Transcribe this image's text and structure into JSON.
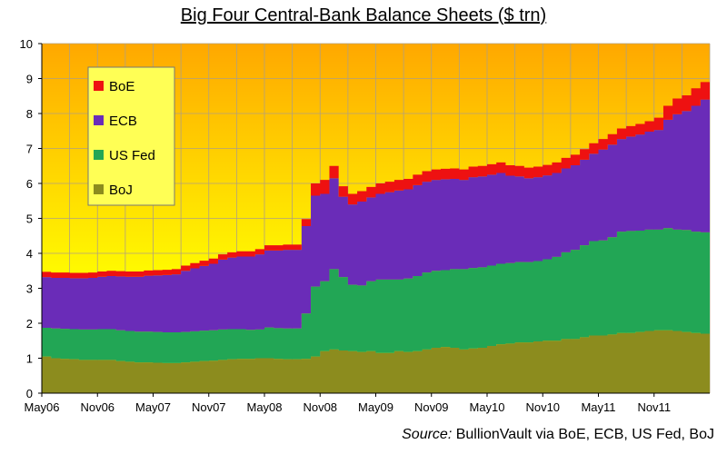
{
  "chart_data": {
    "type": "area",
    "stacked": true,
    "title": "Big Four Central-Bank Balance Sheets ($ trn)",
    "xlabel": "",
    "ylabel": "",
    "ylim": [
      0,
      10
    ],
    "yticks": [
      0,
      1,
      2,
      3,
      4,
      5,
      6,
      7,
      8,
      9,
      10
    ],
    "x_tick_labels": [
      "May06",
      "Nov06",
      "May07",
      "Nov07",
      "May08",
      "Nov08",
      "May09",
      "Nov09",
      "May10",
      "Nov10",
      "May11",
      "Nov11"
    ],
    "x_start": "May06",
    "x_end": "Apr12",
    "grid": true,
    "legend_position": "top-left",
    "background": "gradient yellow to orange",
    "months": [
      "May06",
      "Jun06",
      "Jul06",
      "Aug06",
      "Sep06",
      "Oct06",
      "Nov06",
      "Dec06",
      "Jan07",
      "Feb07",
      "Mar07",
      "Apr07",
      "May07",
      "Jun07",
      "Jul07",
      "Aug07",
      "Sep07",
      "Oct07",
      "Nov07",
      "Dec07",
      "Jan08",
      "Feb08",
      "Mar08",
      "Apr08",
      "May08",
      "Jun08",
      "Jul08",
      "Aug08",
      "Sep08",
      "Oct08",
      "Nov08",
      "Dec08",
      "Jan09",
      "Feb09",
      "Mar09",
      "Apr09",
      "May09",
      "Jun09",
      "Jul09",
      "Aug09",
      "Sep09",
      "Oct09",
      "Nov09",
      "Dec09",
      "Jan10",
      "Feb10",
      "Mar10",
      "Apr10",
      "May10",
      "Jun10",
      "Jul10",
      "Aug10",
      "Sep10",
      "Oct10",
      "Nov10",
      "Dec10",
      "Jan11",
      "Feb11",
      "Mar11",
      "Apr11",
      "May11",
      "Jun11",
      "Jul11",
      "Aug11",
      "Sep11",
      "Oct11",
      "Nov11",
      "Dec11",
      "Jan12",
      "Feb12",
      "Mar12",
      "Apr12"
    ],
    "series": [
      {
        "name": "BoJ",
        "color": "#8c8c1e",
        "values": [
          1.05,
          1.0,
          0.98,
          0.97,
          0.95,
          0.95,
          0.95,
          0.95,
          0.92,
          0.9,
          0.88,
          0.88,
          0.87,
          0.86,
          0.86,
          0.88,
          0.9,
          0.92,
          0.93,
          0.95,
          0.97,
          0.98,
          0.98,
          1.0,
          1.0,
          0.98,
          0.97,
          0.97,
          0.98,
          1.05,
          1.2,
          1.25,
          1.22,
          1.2,
          1.18,
          1.2,
          1.15,
          1.15,
          1.2,
          1.18,
          1.2,
          1.25,
          1.3,
          1.32,
          1.3,
          1.25,
          1.28,
          1.3,
          1.35,
          1.4,
          1.42,
          1.45,
          1.45,
          1.48,
          1.5,
          1.5,
          1.55,
          1.55,
          1.6,
          1.65,
          1.65,
          1.68,
          1.72,
          1.72,
          1.75,
          1.78,
          1.8,
          1.8,
          1.78,
          1.75,
          1.72,
          1.7
        ]
      },
      {
        "name": "US Fed",
        "color": "#22a655",
        "values": [
          0.82,
          0.85,
          0.86,
          0.86,
          0.87,
          0.87,
          0.88,
          0.88,
          0.88,
          0.88,
          0.88,
          0.88,
          0.88,
          0.88,
          0.88,
          0.87,
          0.87,
          0.87,
          0.87,
          0.87,
          0.86,
          0.85,
          0.83,
          0.82,
          0.88,
          0.88,
          0.88,
          0.88,
          1.3,
          2.0,
          2.0,
          2.3,
          2.1,
          1.9,
          1.9,
          2.0,
          2.1,
          2.1,
          2.05,
          2.1,
          2.15,
          2.2,
          2.2,
          2.2,
          2.25,
          2.3,
          2.3,
          2.3,
          2.3,
          2.3,
          2.3,
          2.3,
          2.3,
          2.3,
          2.33,
          2.4,
          2.48,
          2.55,
          2.63,
          2.7,
          2.72,
          2.78,
          2.9,
          2.92,
          2.9,
          2.9,
          2.88,
          2.92,
          2.9,
          2.92,
          2.9,
          2.9
        ]
      },
      {
        "name": "ECB",
        "color": "#6a2cb8",
        "values": [
          1.45,
          1.45,
          1.46,
          1.46,
          1.47,
          1.48,
          1.5,
          1.52,
          1.54,
          1.55,
          1.57,
          1.6,
          1.62,
          1.64,
          1.66,
          1.75,
          1.8,
          1.85,
          1.9,
          2.0,
          2.05,
          2.08,
          2.1,
          2.15,
          2.2,
          2.22,
          2.25,
          2.25,
          2.5,
          2.6,
          2.5,
          2.6,
          2.3,
          2.3,
          2.4,
          2.4,
          2.45,
          2.5,
          2.55,
          2.55,
          2.6,
          2.6,
          2.6,
          2.6,
          2.58,
          2.55,
          2.6,
          2.6,
          2.6,
          2.6,
          2.5,
          2.45,
          2.4,
          2.4,
          2.4,
          2.4,
          2.4,
          2.42,
          2.45,
          2.5,
          2.6,
          2.65,
          2.65,
          2.7,
          2.75,
          2.8,
          2.85,
          3.1,
          3.3,
          3.4,
          3.6,
          3.8
        ]
      },
      {
        "name": "BoE",
        "color": "#ee1111",
        "values": [
          0.15,
          0.15,
          0.15,
          0.15,
          0.15,
          0.15,
          0.15,
          0.15,
          0.15,
          0.15,
          0.15,
          0.15,
          0.15,
          0.15,
          0.15,
          0.15,
          0.15,
          0.15,
          0.15,
          0.15,
          0.15,
          0.15,
          0.15,
          0.15,
          0.15,
          0.15,
          0.15,
          0.15,
          0.2,
          0.35,
          0.4,
          0.35,
          0.3,
          0.3,
          0.3,
          0.3,
          0.3,
          0.3,
          0.3,
          0.3,
          0.3,
          0.3,
          0.3,
          0.3,
          0.3,
          0.3,
          0.3,
          0.3,
          0.3,
          0.3,
          0.3,
          0.3,
          0.3,
          0.3,
          0.3,
          0.3,
          0.3,
          0.3,
          0.3,
          0.3,
          0.3,
          0.3,
          0.3,
          0.3,
          0.3,
          0.3,
          0.35,
          0.4,
          0.45,
          0.45,
          0.5,
          0.5
        ]
      }
    ]
  },
  "legend_order": [
    "BoE",
    "ECB",
    "US Fed",
    "BoJ"
  ],
  "source": {
    "label": "Source:",
    "text": " BullionVault via BoE, ECB, US Fed, BoJ"
  }
}
